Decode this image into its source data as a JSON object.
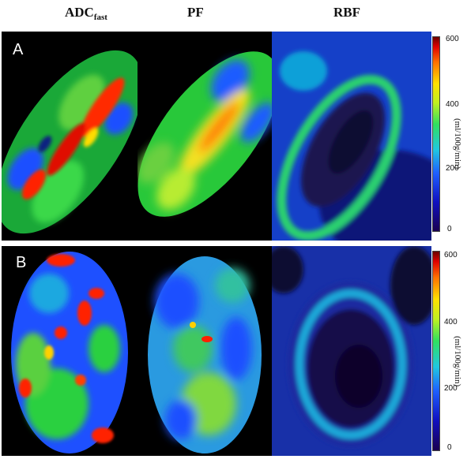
{
  "headers": {
    "adc_main": "ADC",
    "adc_sub": "fast",
    "pf": "PF",
    "rbf": "RBF"
  },
  "rows": [
    {
      "label": "A",
      "colorbar_ticks": [
        "600",
        "400",
        "200",
        "0"
      ],
      "colorbar_unit": "(ml/100g/min)"
    },
    {
      "label": "B",
      "colorbar_ticks": [
        "600",
        "400",
        "200",
        "0"
      ],
      "colorbar_unit": "(ml/100g/min)"
    }
  ]
}
